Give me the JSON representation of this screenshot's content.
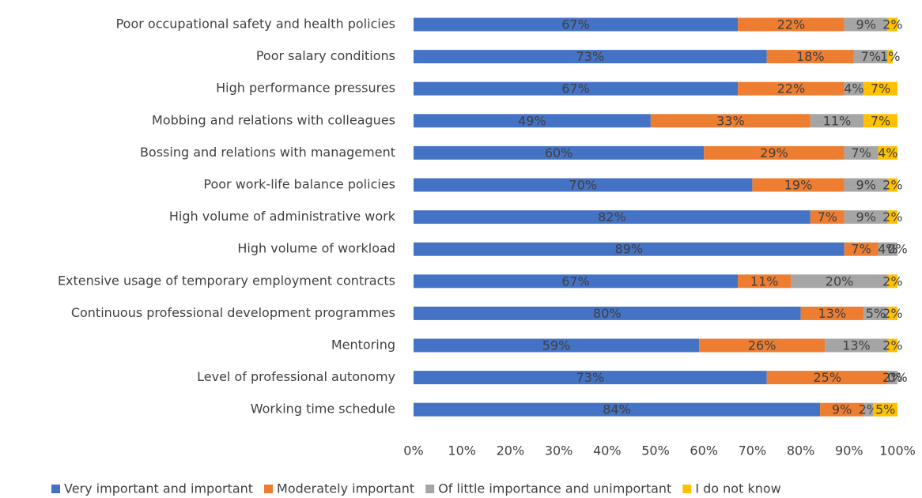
{
  "chart_data": {
    "type": "stacked_bar_horizontal",
    "categories": [
      "Poor occupational safety and health policies",
      "Poor salary conditions",
      "High performance pressures",
      "Mobbing and relations with colleagues",
      "Bossing and relations with management",
      "Poor work-life balance policies",
      "High volume of administrative work",
      "High volume of workload",
      "Extensive usage of temporary employment contracts",
      "Continuous professional development programmes",
      "Mentoring",
      "Level of professional autonomy",
      "Working time schedule"
    ],
    "series": [
      {
        "name": "Very important and important",
        "color": "#4472c4",
        "values": [
          67,
          73,
          67,
          49,
          60,
          70,
          82,
          89,
          67,
          80,
          59,
          73,
          84
        ],
        "value_labels": [
          "67%",
          "73%",
          "67%",
          "49%",
          "60%",
          "70%",
          "82%",
          "89%",
          "67%",
          "80%",
          "59%",
          "73%",
          "84%"
        ]
      },
      {
        "name": "Moderately important",
        "color": "#ed7d31",
        "values": [
          22,
          18,
          22,
          33,
          29,
          19,
          7,
          7,
          11,
          13,
          26,
          25,
          9
        ],
        "value_labels": [
          "22%",
          "18%",
          "22%",
          "33%",
          "29%",
          "19%",
          "7%",
          "7%",
          "11%",
          "13%",
          "26%",
          "25%",
          "9%"
        ]
      },
      {
        "name": "Of little importance and unimportant",
        "color": "#a5a5a5",
        "values": [
          9,
          7,
          4,
          11,
          7,
          9,
          9,
          4,
          20,
          5,
          13,
          2,
          2
        ],
        "value_labels": [
          "9%",
          "7%",
          "4%",
          "11%",
          "7%",
          "9%",
          "9%",
          "4%",
          "20%",
          "5%",
          "13%",
          "2%",
          "2%"
        ]
      },
      {
        "name": "I do not know",
        "color": "#ffc000",
        "values": [
          2,
          1,
          7,
          7,
          4,
          2,
          2,
          0,
          2,
          2,
          2,
          0,
          5
        ],
        "value_labels": [
          "2%",
          "1%",
          "7%",
          "7%",
          "4%",
          "2%",
          "2%",
          "0%",
          "2%",
          "2%",
          "2%",
          "0%",
          "5%"
        ]
      }
    ],
    "xlim": [
      0,
      100
    ],
    "xticks": [
      {
        "value": 0,
        "label": "0%"
      },
      {
        "value": 10,
        "label": "10%"
      },
      {
        "value": 20,
        "label": "20%"
      },
      {
        "value": 30,
        "label": "30%"
      },
      {
        "value": 40,
        "label": "40%"
      },
      {
        "value": 50,
        "label": "50%"
      },
      {
        "value": 60,
        "label": "60%"
      },
      {
        "value": 70,
        "label": "70%"
      },
      {
        "value": 80,
        "label": "80%"
      },
      {
        "value": 90,
        "label": "90%"
      },
      {
        "value": 100,
        "label": "100%"
      }
    ],
    "legend": "bottom"
  }
}
